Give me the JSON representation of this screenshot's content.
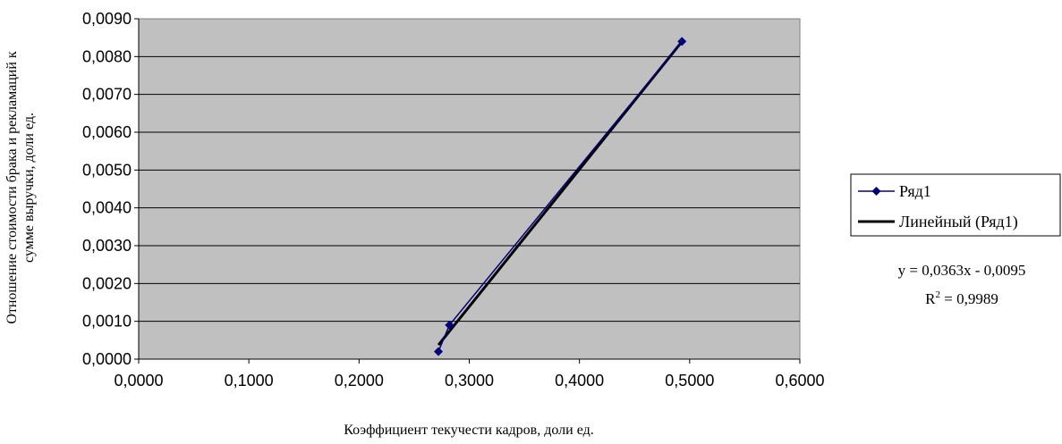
{
  "chart_data": {
    "type": "scatter",
    "xlabel": "Коэффициент текучести кадров, доли ед.",
    "ylabel_line1": "Отношение стоимости брака и рекламаций к",
    "ylabel_line2": "сумме выручки, доли ед.",
    "xlim": [
      0,
      0.6
    ],
    "ylim": [
      0,
      0.009
    ],
    "x_ticks": [
      "0,0000",
      "0,1000",
      "0,2000",
      "0,3000",
      "0,4000",
      "0,5000",
      "0,6000"
    ],
    "y_ticks": [
      "0,0000",
      "0,0010",
      "0,0020",
      "0,0030",
      "0,0040",
      "0,0050",
      "0,0060",
      "0,0070",
      "0,0080",
      "0,0090"
    ],
    "grid": "horizontal",
    "plot_background": "#c0c0c0",
    "series": [
      {
        "name": "Ряд1",
        "color": "#000080",
        "marker": "diamond",
        "points": [
          {
            "x": 0.272,
            "y": 0.0002
          },
          {
            "x": 0.282,
            "y": 0.0009
          },
          {
            "x": 0.493,
            "y": 0.0084
          }
        ]
      }
    ],
    "trendline": {
      "name": "Линейный (Ряд1)",
      "color": "#000000",
      "slope": 0.0363,
      "intercept": -0.0095,
      "x_range": [
        0.272,
        0.493
      ],
      "equation": "y = 0,0363x - 0,0095",
      "r2_label": "R",
      "r2_sup": "2",
      "r2_value": " = 0,9989"
    },
    "legend": {
      "position": "right",
      "items": [
        "Ряд1",
        "Линейный (Ряд1)"
      ]
    }
  }
}
